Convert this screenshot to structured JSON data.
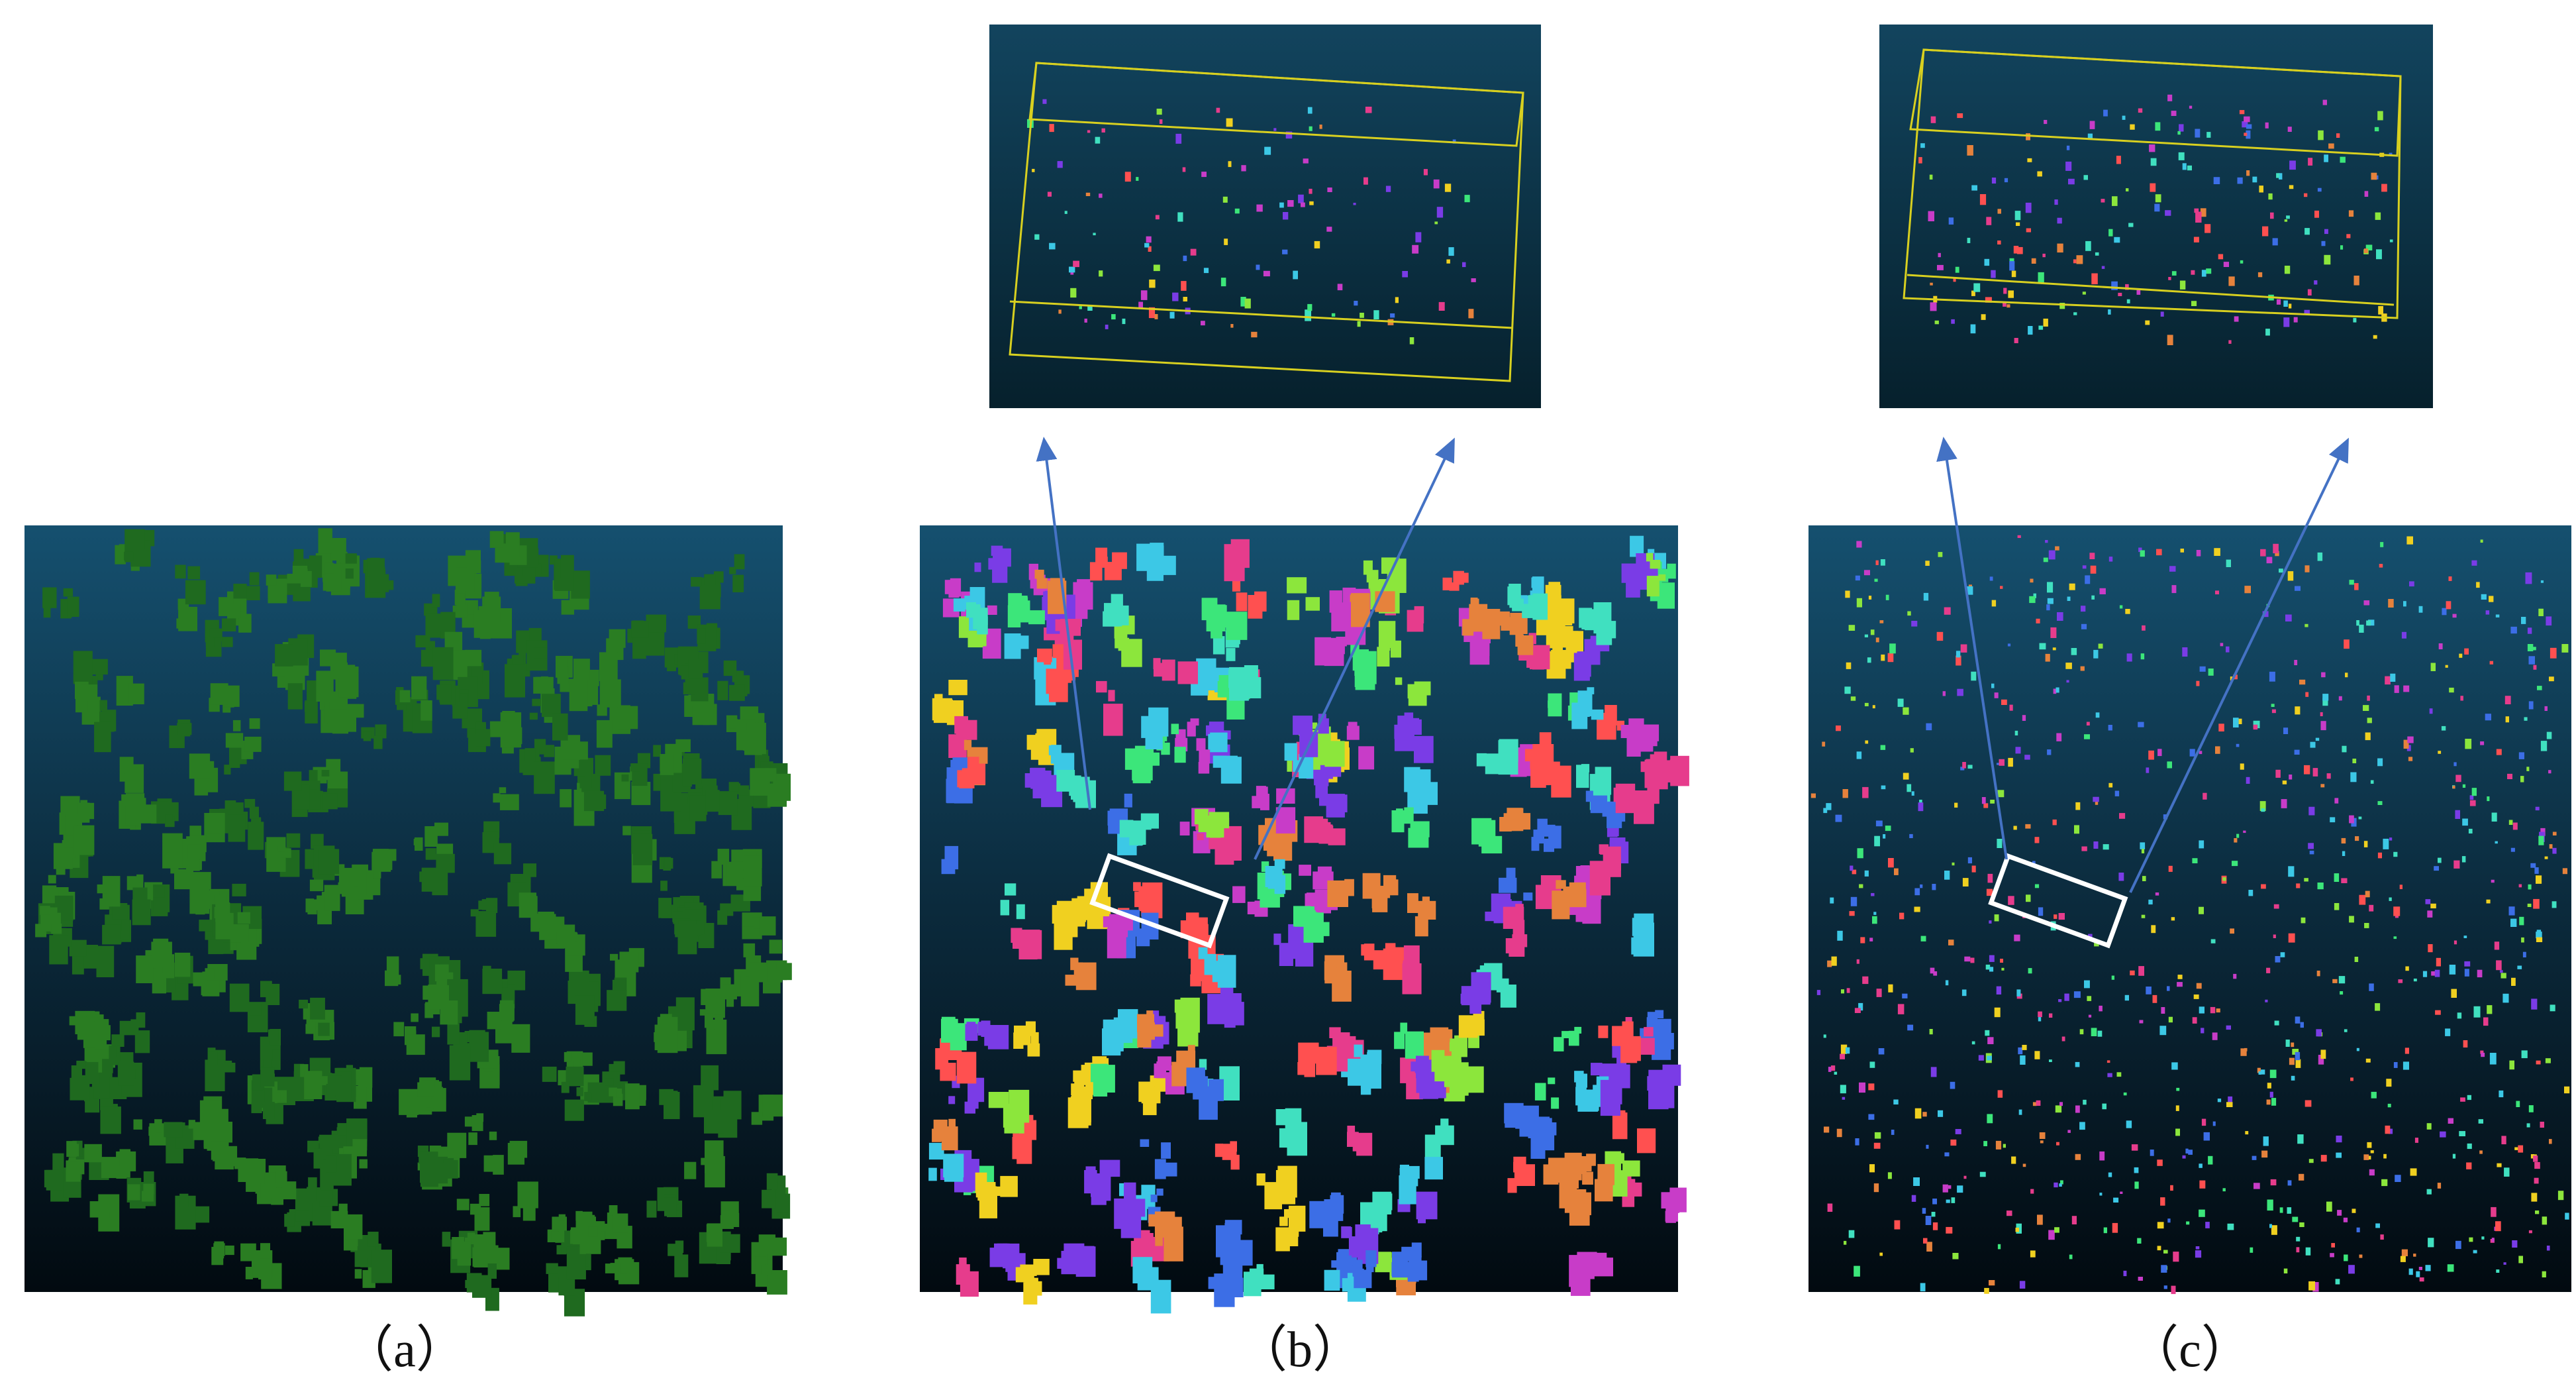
{
  "figure": {
    "panels": [
      {
        "label": "（a）"
      },
      {
        "label": "（b）"
      },
      {
        "label": "（c）"
      }
    ]
  }
}
